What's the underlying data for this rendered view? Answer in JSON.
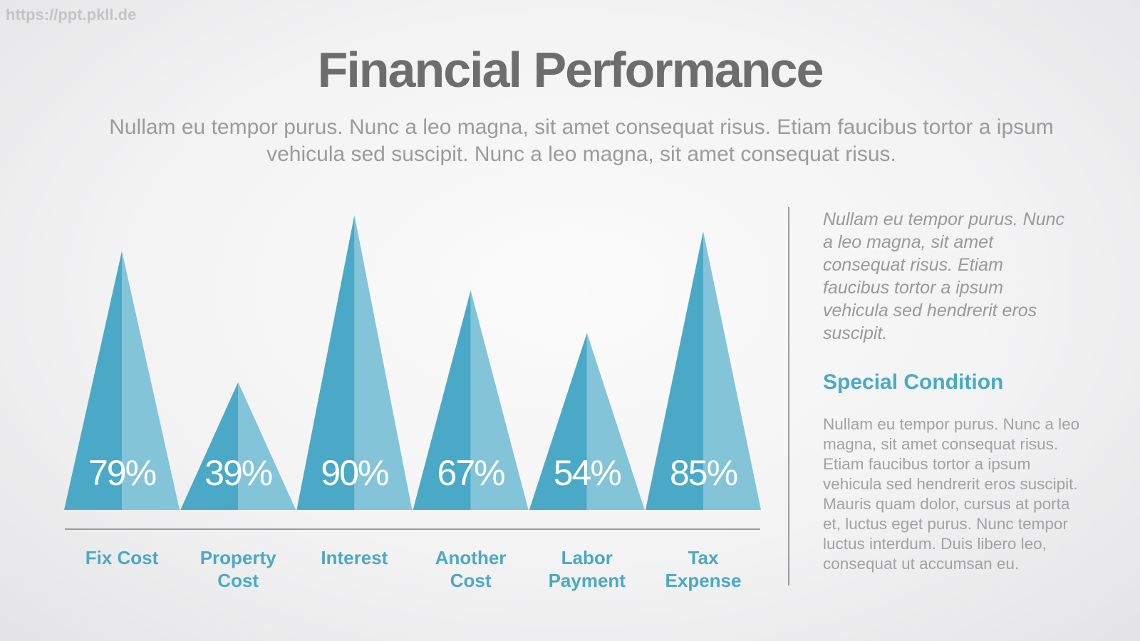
{
  "watermark": "https://ppt.pkll.de",
  "chart_data": {
    "type": "triangle",
    "title": "Financial Performance",
    "subtitle": "Nullam eu tempor purus. Nunc a leo magna, sit amet consequat risus. Etiam faucibus tortor a ipsum vehicula sed suscipit. Nunc a leo magna, sit amet consequat risus.",
    "categories": [
      "Fix Cost",
      "Property Cost",
      "Interest",
      "Another Cost",
      "Labor Payment",
      "Tax Expense"
    ],
    "values": [
      79,
      39,
      90,
      67,
      54,
      85
    ],
    "value_labels": [
      "79%",
      "39%",
      "90%",
      "67%",
      "54%",
      "85%"
    ],
    "color": "#4aa9c6"
  },
  "sidebar": {
    "intro": "Nullam eu tempor purus. Nunc a leo magna, sit amet consequat risus. Etiam faucibus tortor a ipsum vehicula sed hendrerit eros suscipit.",
    "heading": "Special Condition",
    "body": "Nullam eu tempor purus. Nunc a leo magna, sit amet consequat risus. Etiam faucibus tortor a ipsum vehicula sed hendrerit eros suscipit. Mauris quam dolor, cursus at porta et, luctus eget purus. Nunc tempor luctus interdum. Duis libero leo, consequat ut accumsan eu."
  }
}
